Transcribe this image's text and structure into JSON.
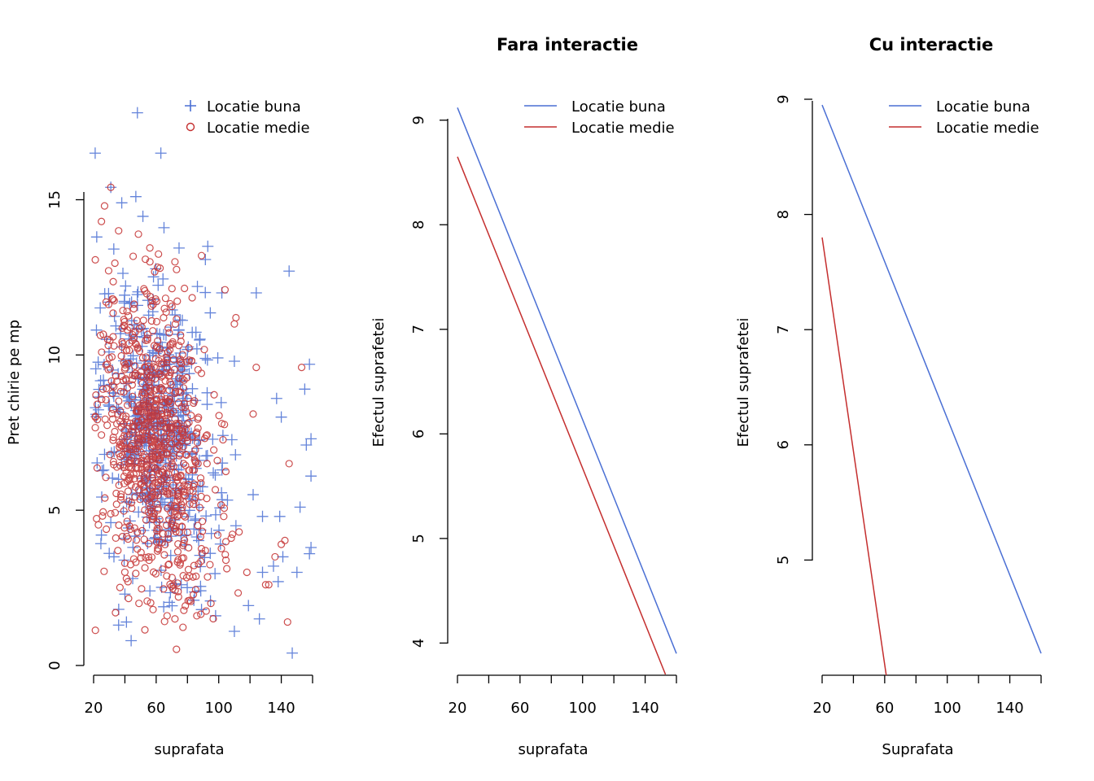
{
  "colors": {
    "buna": "#4a6fd4",
    "medie": "#c42e2e"
  },
  "chart_data": [
    {
      "type": "scatter",
      "title": "",
      "xlabel": "suprafata",
      "ylabel": "Pret chirie pe mp",
      "xlim": [
        20,
        160
      ],
      "ylim": [
        0,
        18
      ],
      "xticks": [
        20,
        40,
        60,
        80,
        100,
        120,
        140,
        160
      ],
      "xtick_labels": [
        20,
        60,
        100,
        140
      ],
      "yticks": [
        0,
        5,
        10,
        15
      ],
      "legend": {
        "placement": "top-right",
        "entries": [
          {
            "label": "Locatie buna",
            "marker": "plus",
            "color": "#4a6fd4"
          },
          {
            "label": "Locatie medie",
            "marker": "circle",
            "color": "#c42e2e"
          }
        ]
      },
      "series": [
        {
          "name": "Locatie buna",
          "marker": "plus",
          "x": [
            48,
            21,
            63,
            31,
            47,
            38,
            65,
            22,
            93,
            145,
            124,
            102,
            158,
            110,
            137,
            140,
            155,
            159,
            159,
            152,
            139,
            122,
            128,
            111,
            135,
            128,
            141,
            150,
            147,
            156,
            158,
            159,
            138,
            25,
            110,
            27,
            33,
            41,
            126,
            36,
            31,
            40,
            44,
            98,
            89,
            76,
            56,
            45
          ],
          "y": [
            17.8,
            16.5,
            16.5,
            15.4,
            15.1,
            14.9,
            14.1,
            13.8,
            13.5,
            12.7,
            12.0,
            12.0,
            9.7,
            9.8,
            8.6,
            8.0,
            8.9,
            7.3,
            6.1,
            5.1,
            4.8,
            5.5,
            4.8,
            4.5,
            3.2,
            3.0,
            3.5,
            3.0,
            0.4,
            7.1,
            3.6,
            3.8,
            2.7,
            4.2,
            1.1,
            6.8,
            3.5,
            1.4,
            1.5,
            1.3,
            4.6,
            2.3,
            0.8,
            1.6,
            1.8,
            2.6,
            2.4,
            2.8
          ],
          "cluster": {
            "n": 520,
            "x_center": 62,
            "x_spread": 19,
            "y_center": 7.6,
            "y_spread": 2.2,
            "y_slope": -0.03
          }
        },
        {
          "name": "Locatie medie",
          "marker": "circle",
          "x": [
            31,
            27,
            25,
            36,
            56,
            72,
            89,
            104,
            111,
            110,
            124,
            122,
            145,
            153,
            144,
            108,
            42,
            34,
            26,
            49,
            58,
            67,
            72,
            86,
            95,
            113,
            140,
            136,
            132,
            130,
            118,
            29,
            30,
            41
          ],
          "y": [
            15.4,
            14.8,
            14.3,
            14.0,
            13.0,
            13.0,
            13.2,
            12.1,
            11.2,
            11.0,
            9.6,
            8.1,
            6.5,
            9.6,
            1.4,
            4.1,
            2.7,
            1.7,
            8.9,
            2.0,
            1.8,
            1.6,
            1.5,
            1.6,
            2.0,
            4.3,
            3.9,
            3.5,
            2.6,
            2.6,
            3.0,
            10.5,
            9.9,
            2.8
          ],
          "cluster": {
            "n": 860,
            "x_center": 60,
            "x_spread": 18,
            "y_center": 7.2,
            "y_spread": 2.3,
            "y_slope": -0.032
          }
        }
      ]
    },
    {
      "type": "line",
      "title": "Fara interactie",
      "xlabel": "suprafata",
      "ylabel": "Efectul suprafetei",
      "xlim": [
        20,
        160
      ],
      "ylim": [
        3.7,
        9.2
      ],
      "xticks": [
        20,
        40,
        60,
        80,
        100,
        120,
        140,
        160
      ],
      "xtick_labels": [
        20,
        60,
        100,
        140
      ],
      "yticks": [
        4,
        5,
        6,
        7,
        8,
        9
      ],
      "legend": {
        "placement": "top-right",
        "entries": [
          {
            "label": "Locatie buna",
            "marker": "line",
            "color": "#4a6fd4"
          },
          {
            "label": "Locatie medie",
            "marker": "line",
            "color": "#c42e2e"
          }
        ]
      },
      "series": [
        {
          "name": "Locatie buna",
          "x": [
            20,
            160
          ],
          "y": [
            9.12,
            3.9
          ]
        },
        {
          "name": "Locatie medie",
          "x": [
            20,
            153
          ],
          "y": [
            8.65,
            3.7
          ]
        }
      ]
    },
    {
      "type": "line",
      "title": "Cu interactie",
      "xlabel": "Suprafata",
      "ylabel": "Efectul suprafetei",
      "xlim": [
        20,
        160
      ],
      "ylim": [
        4.0,
        9.0
      ],
      "xticks": [
        20,
        40,
        60,
        80,
        100,
        120,
        140,
        160
      ],
      "xtick_labels": [
        20,
        60,
        100,
        140
      ],
      "yticks": [
        5,
        6,
        7,
        8,
        9
      ],
      "legend": {
        "placement": "top-right",
        "entries": [
          {
            "label": "Locatie buna",
            "marker": "line",
            "color": "#4a6fd4"
          },
          {
            "label": "Locatie medie",
            "marker": "line",
            "color": "#c42e2e"
          }
        ]
      },
      "series": [
        {
          "name": "Locatie buna",
          "x": [
            20,
            160
          ],
          "y": [
            8.95,
            4.19
          ]
        },
        {
          "name": "Locatie medie",
          "x": [
            20,
            61
          ],
          "y": [
            7.8,
            4.0
          ]
        }
      ]
    }
  ]
}
